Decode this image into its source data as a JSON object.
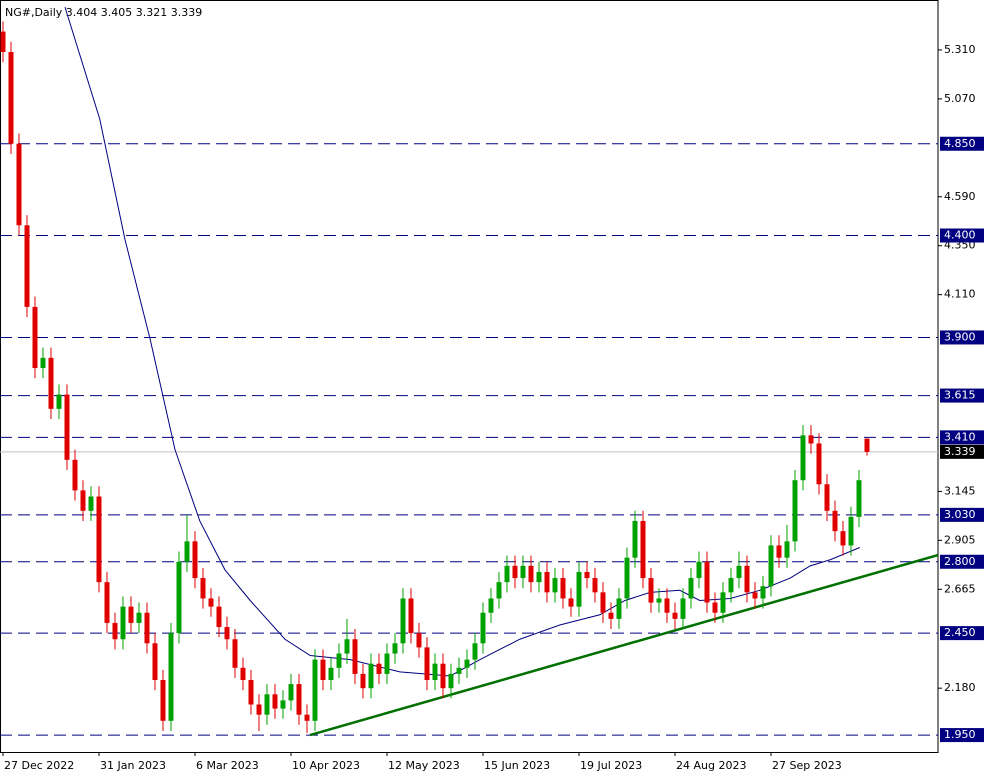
{
  "chart_data": {
    "type": "candlestick",
    "title": "NG#,Daily  3.404 3.405 3.321 3.339",
    "open": [
      5.4,
      5.3,
      4.85,
      4.45,
      4.05,
      3.75,
      3.8,
      3.55,
      3.62,
      3.3,
      3.15,
      3.05,
      3.12,
      2.7,
      2.5,
      2.42,
      2.58,
      2.5,
      2.55,
      2.4,
      2.22,
      2.02,
      2.45,
      2.8,
      2.9,
      2.72,
      2.62,
      2.58,
      2.48,
      2.42,
      2.28,
      2.22,
      2.1,
      2.05,
      2.15,
      2.08,
      2.12,
      2.2,
      2.05,
      2.02,
      2.32,
      2.22,
      2.28,
      2.35,
      2.42,
      2.25,
      2.18,
      2.3,
      2.25,
      2.35,
      2.4,
      2.62,
      2.45,
      2.38,
      2.22,
      2.3,
      2.18,
      2.25,
      2.28,
      2.32,
      2.4,
      2.55,
      2.62,
      2.7,
      2.78,
      2.72,
      2.78,
      2.7,
      2.75,
      2.65,
      2.72,
      2.62,
      2.58,
      2.75,
      2.72,
      2.65,
      2.55,
      2.52,
      2.62,
      2.82,
      3.0,
      2.72,
      2.6,
      2.62,
      2.55,
      2.52,
      2.62,
      2.72,
      2.8,
      2.6,
      2.55,
      2.65,
      2.72,
      2.78,
      2.65,
      2.62,
      2.68,
      2.88,
      2.82,
      2.9,
      3.2,
      3.42,
      3.38,
      3.18,
      3.05,
      2.95,
      2.88,
      3.02,
      3.404
    ],
    "high": [
      5.45,
      5.35,
      4.9,
      4.5,
      4.1,
      3.85,
      3.85,
      3.67,
      3.67,
      3.35,
      3.2,
      3.17,
      3.17,
      2.75,
      2.55,
      2.63,
      2.63,
      2.6,
      2.6,
      2.45,
      2.27,
      2.5,
      2.85,
      3.03,
      2.95,
      2.77,
      2.67,
      2.63,
      2.53,
      2.47,
      2.33,
      2.27,
      2.15,
      2.2,
      2.2,
      2.17,
      2.25,
      2.25,
      2.1,
      2.37,
      2.37,
      2.33,
      2.4,
      2.52,
      2.47,
      2.3,
      2.35,
      2.35,
      2.4,
      2.45,
      2.67,
      2.67,
      2.5,
      2.43,
      2.35,
      2.35,
      2.3,
      2.33,
      2.37,
      2.45,
      2.6,
      2.67,
      2.75,
      2.83,
      2.83,
      2.83,
      2.83,
      2.8,
      2.8,
      2.77,
      2.77,
      2.67,
      2.8,
      2.8,
      2.77,
      2.7,
      2.6,
      2.67,
      2.87,
      3.05,
      3.05,
      2.77,
      2.67,
      2.67,
      2.6,
      2.67,
      2.77,
      2.85,
      2.85,
      2.65,
      2.7,
      2.77,
      2.85,
      2.83,
      2.7,
      2.73,
      2.93,
      2.93,
      2.98,
      3.25,
      3.47,
      3.47,
      3.43,
      3.23,
      3.1,
      3.0,
      3.07,
      3.25,
      3.405
    ],
    "low": [
      5.25,
      4.8,
      4.4,
      4.0,
      3.7,
      3.7,
      3.5,
      3.5,
      3.25,
      3.1,
      3.0,
      3.0,
      2.65,
      2.45,
      2.37,
      2.37,
      2.45,
      2.45,
      2.35,
      2.17,
      1.97,
      1.97,
      2.4,
      2.75,
      2.67,
      2.57,
      2.53,
      2.43,
      2.37,
      2.23,
      2.17,
      2.05,
      1.97,
      2.0,
      2.03,
      2.03,
      2.07,
      2.0,
      1.96,
      1.97,
      2.17,
      2.17,
      2.23,
      2.3,
      2.2,
      2.13,
      2.13,
      2.2,
      2.2,
      2.3,
      2.35,
      2.4,
      2.33,
      2.17,
      2.17,
      2.13,
      2.13,
      2.2,
      2.23,
      2.27,
      2.35,
      2.5,
      2.57,
      2.65,
      2.67,
      2.67,
      2.65,
      2.65,
      2.6,
      2.6,
      2.57,
      2.53,
      2.53,
      2.67,
      2.6,
      2.5,
      2.47,
      2.47,
      2.57,
      2.77,
      2.67,
      2.55,
      2.55,
      2.5,
      2.47,
      2.47,
      2.57,
      2.67,
      2.55,
      2.5,
      2.5,
      2.6,
      2.67,
      2.6,
      2.57,
      2.57,
      2.63,
      2.77,
      2.77,
      2.85,
      3.15,
      3.33,
      3.13,
      3.0,
      2.9,
      2.83,
      2.83,
      2.97,
      3.321
    ],
    "close": [
      5.3,
      4.85,
      4.45,
      4.05,
      3.75,
      3.8,
      3.55,
      3.62,
      3.3,
      3.15,
      3.05,
      3.12,
      2.7,
      2.5,
      2.42,
      2.58,
      2.5,
      2.55,
      2.4,
      2.22,
      2.02,
      2.45,
      2.8,
      2.9,
      2.72,
      2.62,
      2.58,
      2.48,
      2.42,
      2.28,
      2.22,
      2.1,
      2.05,
      2.15,
      2.08,
      2.12,
      2.2,
      2.05,
      2.02,
      2.32,
      2.22,
      2.28,
      2.35,
      2.42,
      2.25,
      2.18,
      2.3,
      2.25,
      2.35,
      2.4,
      2.62,
      2.45,
      2.38,
      2.22,
      2.3,
      2.18,
      2.25,
      2.28,
      2.32,
      2.4,
      2.55,
      2.62,
      2.7,
      2.78,
      2.72,
      2.78,
      2.7,
      2.75,
      2.65,
      2.72,
      2.62,
      2.58,
      2.75,
      2.72,
      2.65,
      2.55,
      2.52,
      2.62,
      2.82,
      3.0,
      2.72,
      2.6,
      2.62,
      2.55,
      2.52,
      2.62,
      2.72,
      2.8,
      2.6,
      2.55,
      2.65,
      2.72,
      2.78,
      2.65,
      2.62,
      2.68,
      2.88,
      2.82,
      2.9,
      3.2,
      3.42,
      3.38,
      3.18,
      3.05,
      2.95,
      2.88,
      3.02,
      3.2,
      3.339
    ],
    "up_color": "#00a000",
    "down_color": "#e00000",
    "ma": {
      "color": "#000080",
      "x": [
        7.75,
        12.1,
        15.25,
        18.4,
        21.5,
        24.6,
        27.75,
        30.9,
        35.25,
        38.4,
        43.4,
        49.6,
        55.9,
        59.6,
        64.6,
        69.6,
        74.6,
        77.75,
        80.9,
        84.6,
        87.1,
        90.9,
        94.6,
        98.4,
        100.9,
        103.4,
        107.1
      ],
      "y": [
        5.52,
        4.97,
        4.38,
        3.89,
        3.35,
        3.0,
        2.76,
        2.61,
        2.42,
        2.34,
        2.32,
        2.26,
        2.24,
        2.32,
        2.42,
        2.49,
        2.54,
        2.61,
        2.65,
        2.66,
        2.61,
        2.62,
        2.66,
        2.72,
        2.78,
        2.81,
        2.87
      ]
    },
    "trendline": {
      "color": "#007000",
      "x": [
        38.375,
        116.875
      ],
      "y": [
        1.95,
        2.833
      ]
    },
    "levels": [
      {
        "value": 4.85,
        "label": "4.850"
      },
      {
        "value": 4.4,
        "label": "4.400"
      },
      {
        "value": 3.9,
        "label": "3.900"
      },
      3.615,
      {
        "value": 3.41,
        "label": "3.410"
      },
      {
        "value": 3.03,
        "label": "3.030"
      },
      {
        "value": 2.8,
        "label": "2.800"
      },
      {
        "value": 2.45,
        "label": "2.450"
      },
      {
        "value": 1.95,
        "label": "1.950"
      }
    ],
    "level_color": "#000080",
    "current_price": 3.339,
    "xlim": [
      -0.375,
      116.875
    ],
    "xticks": [
      {
        "value": 0,
        "label": "27 Dec 2022"
      },
      {
        "value": 12,
        "label": "31 Jan 2023"
      },
      {
        "value": 24,
        "label": "6 Mar 2023"
      },
      {
        "value": 36,
        "label": "10 Apr 2023"
      },
      {
        "value": 48,
        "label": "12 May 2023"
      },
      {
        "value": 60,
        "label": "15 Jun 2023"
      },
      {
        "value": 72,
        "label": "19 Jul 2023"
      },
      {
        "value": 84,
        "label": "24 Aug 2023"
      },
      {
        "value": 96,
        "label": "27 Sep 2023"
      }
    ],
    "ylim": [
      1.867,
      5.555
    ],
    "yticks": [
      {
        "value": 5.31,
        "label": "5.310"
      },
      {
        "value": 5.07,
        "label": "5.070"
      },
      {
        "value": 4.59,
        "label": "4.590"
      },
      {
        "value": 4.35,
        "label": "4.350"
      },
      {
        "value": 4.11,
        "label": "4.110"
      },
      3.145,
      2.905,
      2.665,
      {
        "value": 2.18,
        "label": "2.180"
      }
    ]
  }
}
